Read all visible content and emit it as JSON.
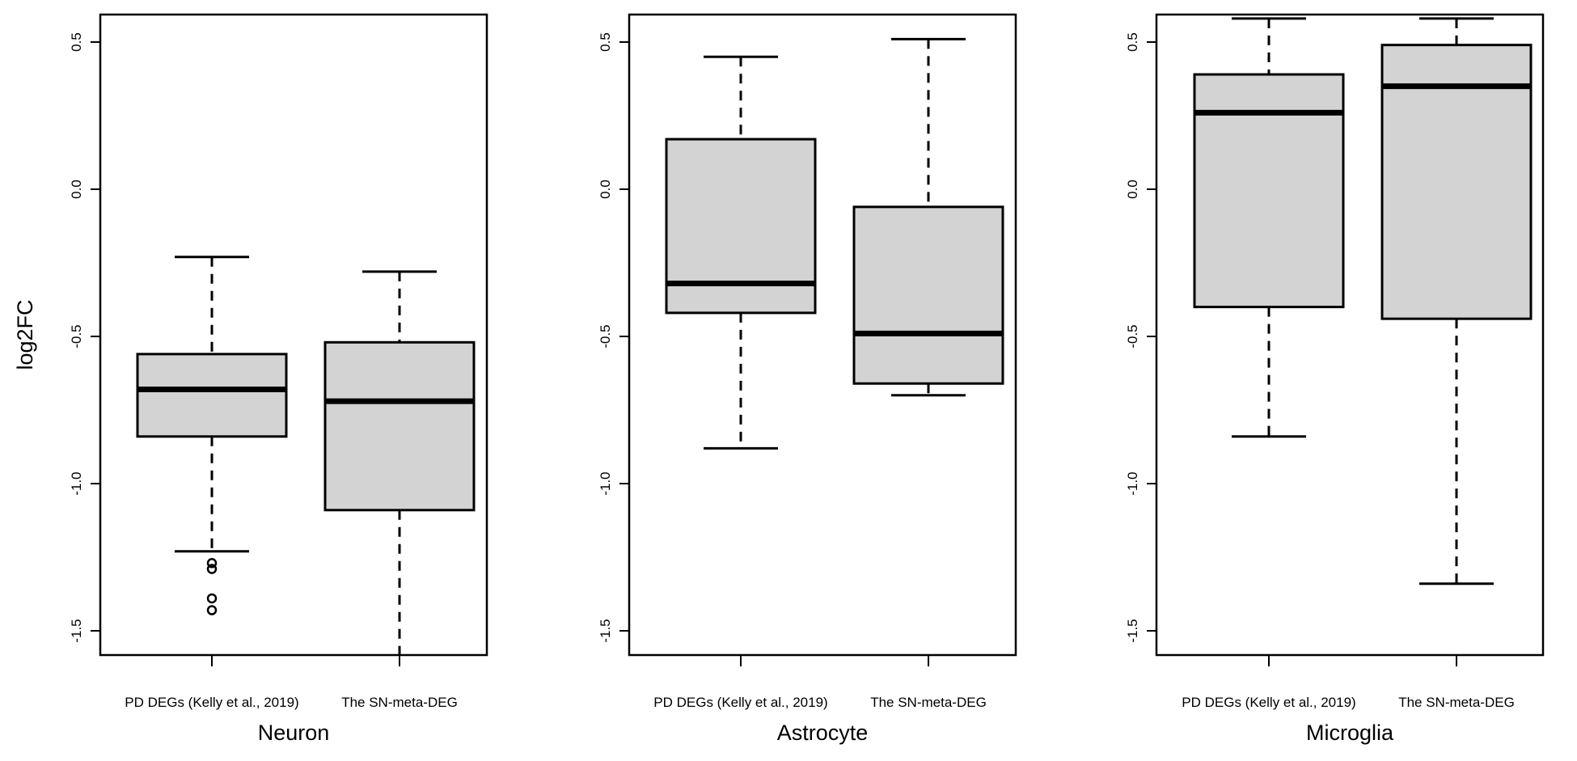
{
  "chart_data": [
    {
      "type": "box",
      "title": "Neuron",
      "ylabel": "log2FC",
      "ylim": [
        -1.59,
        0.58
      ],
      "yticks": [
        "-1.5",
        "-1.0",
        "-0.5",
        "0.0",
        "0.5"
      ],
      "categories": [
        "PD DEGs (Kelly et al., 2019)",
        "The SN-meta-DEG"
      ],
      "boxes": [
        {
          "whisker_low": -1.23,
          "q1": -0.84,
          "median": -0.68,
          "q3": -0.56,
          "whisker_high": -0.23,
          "outliers": [
            -1.27,
            -1.29,
            -1.39,
            -1.43
          ]
        },
        {
          "whisker_low": -1.59,
          "q1": -1.09,
          "median": -0.72,
          "q3": -0.52,
          "whisker_high": -0.28,
          "outliers": []
        }
      ]
    },
    {
      "type": "box",
      "title": "Astrocyte",
      "ylabel": "",
      "ylim": [
        -1.59,
        0.58
      ],
      "yticks": [
        "-1.5",
        "-1.0",
        "-0.5",
        "0.0",
        "0.5"
      ],
      "categories": [
        "PD DEGs (Kelly et al., 2019)",
        "The SN-meta-DEG"
      ],
      "boxes": [
        {
          "whisker_low": -0.88,
          "q1": -0.42,
          "median": -0.32,
          "q3": 0.17,
          "whisker_high": 0.45,
          "outliers": []
        },
        {
          "whisker_low": -0.7,
          "q1": -0.66,
          "median": -0.49,
          "q3": -0.06,
          "whisker_high": 0.51,
          "outliers": []
        }
      ]
    },
    {
      "type": "box",
      "title": "Microglia",
      "ylabel": "",
      "ylim": [
        -1.59,
        0.58
      ],
      "yticks": [
        "-1.5",
        "-1.0",
        "-0.5",
        "0.0",
        "0.5"
      ],
      "categories": [
        "PD DEGs (Kelly et al., 2019)",
        "The SN-meta-DEG"
      ],
      "boxes": [
        {
          "whisker_low": -0.84,
          "q1": -0.4,
          "median": 0.26,
          "q3": 0.39,
          "whisker_high": 0.58,
          "outliers": []
        },
        {
          "whisker_low": -1.34,
          "q1": -0.44,
          "median": 0.35,
          "q3": 0.49,
          "whisker_high": 0.58,
          "outliers": []
        }
      ]
    }
  ],
  "colors": {
    "box_fill": "#d3d3d3",
    "stroke": "#000000",
    "background": "#ffffff"
  }
}
